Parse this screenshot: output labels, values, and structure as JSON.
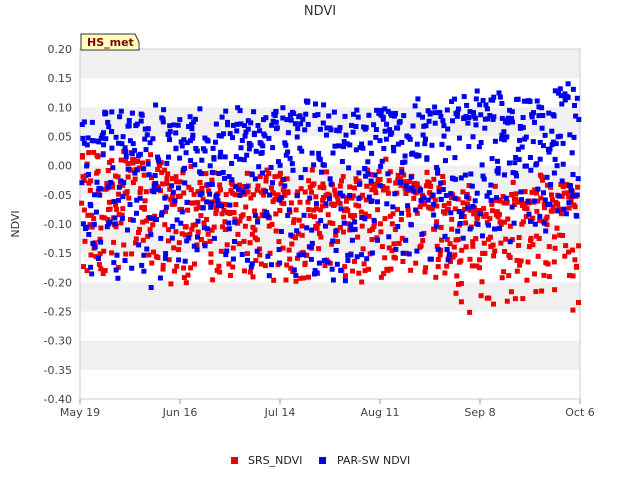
{
  "chart_data": {
    "type": "scatter",
    "title": "NDVI",
    "xlabel": "",
    "ylabel": "NDVI",
    "badge": "HS_met",
    "ylim": [
      -0.4,
      0.2
    ],
    "yticks": [
      0.2,
      0.15,
      0.1,
      0.05,
      0.0,
      -0.05,
      -0.1,
      -0.15,
      -0.2,
      -0.25,
      -0.3,
      -0.35,
      -0.4
    ],
    "ytick_labels": [
      "0.20",
      "0.15",
      "0.10",
      "0.05",
      "0.00",
      "-0.05",
      "-0.10",
      "-0.15",
      "-0.20",
      "-0.25",
      "-0.30",
      "-0.35",
      "-0.40"
    ],
    "xlim_days": [
      0,
      140
    ],
    "xticks": [
      {
        "label": "May 19",
        "day": 0
      },
      {
        "label": "Jun 16",
        "day": 28
      },
      {
        "label": "Jul 14",
        "day": 56
      },
      {
        "label": "Aug 11",
        "day": 84
      },
      {
        "label": "Sep 8",
        "day": 112
      },
      {
        "label": "Oct 6",
        "day": 140
      }
    ],
    "grid": "horizontal bands",
    "legend_position": "bottom-center",
    "series": [
      {
        "name": "SRS_NDVI",
        "color": "#ee0000",
        "daily_cycle": true,
        "points_per_day": 6,
        "midday_range": [
          [
            0,
            0.03
          ],
          [
            14,
            0.0
          ],
          [
            28,
            -0.02
          ],
          [
            42,
            -0.03
          ],
          [
            56,
            -0.03
          ],
          [
            70,
            -0.03
          ],
          [
            84,
            -0.02
          ],
          [
            98,
            -0.04
          ],
          [
            112,
            -0.06
          ],
          [
            126,
            -0.04
          ],
          [
            140,
            -0.05
          ]
        ],
        "low_range": [
          [
            0,
            -0.2
          ],
          [
            14,
            -0.18
          ],
          [
            28,
            -0.19
          ],
          [
            42,
            -0.2
          ],
          [
            56,
            -0.19
          ],
          [
            70,
            -0.19
          ],
          [
            84,
            -0.2
          ],
          [
            98,
            -0.21
          ],
          [
            112,
            -0.24
          ],
          [
            126,
            -0.25
          ],
          [
            140,
            -0.25
          ]
        ]
      },
      {
        "name": "PAR-SW NDVI",
        "color": "#0000ee",
        "daily_cycle": true,
        "points_per_day": 6,
        "midday_range": [
          [
            0,
            0.08
          ],
          [
            14,
            0.07
          ],
          [
            28,
            0.08
          ],
          [
            42,
            0.09
          ],
          [
            56,
            0.09
          ],
          [
            70,
            0.09
          ],
          [
            84,
            0.09
          ],
          [
            98,
            0.09
          ],
          [
            112,
            0.11
          ],
          [
            126,
            0.1
          ],
          [
            140,
            0.13
          ]
        ],
        "low_range": [
          [
            0,
            -0.19
          ],
          [
            14,
            -0.23
          ],
          [
            28,
            -0.19
          ],
          [
            42,
            -0.18
          ],
          [
            56,
            -0.2
          ],
          [
            70,
            -0.2
          ],
          [
            84,
            -0.18
          ],
          [
            98,
            -0.17
          ],
          [
            112,
            -0.14
          ],
          [
            126,
            -0.12
          ],
          [
            140,
            -0.1
          ]
        ]
      }
    ]
  }
}
